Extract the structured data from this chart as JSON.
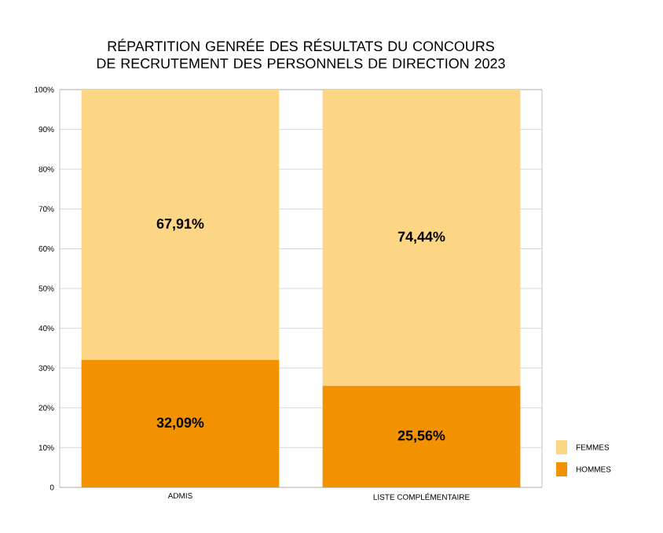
{
  "chart_data": {
    "type": "bar",
    "stacked": true,
    "title": "RÉPARTITION GENRÉE DES RÉSULTATS DU CONCOURS DE RECRUTEMENT DES PERSONNELS DE DIRECTION 2023",
    "categories": [
      "ADMIS",
      "LISTE COMPLÉMENTAIRE"
    ],
    "series": [
      {
        "name": "HOMMES",
        "color": "#f39200",
        "values": [
          32.09,
          25.56
        ],
        "value_labels": [
          "32,09%",
          "25,56%"
        ]
      },
      {
        "name": "FEMMES",
        "color": "#fdd685",
        "values": [
          67.91,
          74.44
        ],
        "value_labels": [
          "67,91%",
          "74,44%"
        ]
      }
    ],
    "ylim": [
      0,
      100
    ],
    "yticks": [
      0,
      {
        "value": 10,
        "label": "10%"
      },
      {
        "value": 20,
        "label": "20%"
      },
      {
        "value": 30,
        "label": "30%"
      },
      {
        "value": 40,
        "label": "40%"
      },
      {
        "value": 50,
        "label": "50%"
      },
      {
        "value": 60,
        "label": "60%"
      },
      {
        "value": 70,
        "label": "70%"
      },
      {
        "value": 80,
        "label": "80%"
      },
      {
        "value": 90,
        "label": "90%"
      },
      {
        "value": 100,
        "label": "100%"
      }
    ],
    "grid": "y",
    "legend": "bottom right"
  }
}
